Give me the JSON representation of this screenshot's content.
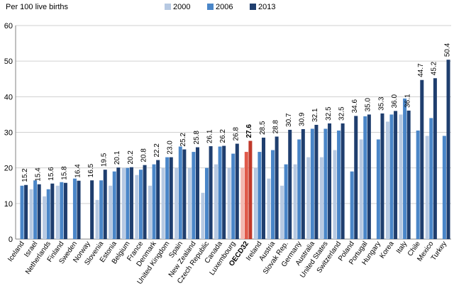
{
  "chart_data": {
    "type": "bar",
    "ylabel": "Per 100 live births",
    "ylim": [
      0,
      60
    ],
    "yticks": [
      0,
      10,
      20,
      30,
      40,
      50,
      60
    ],
    "grid": true,
    "legend_position": "top",
    "highlight_category": "OECD32",
    "highlight_color": "#C0392B",
    "categories": [
      "Iceland",
      "Israel",
      "Netherlands",
      "Finland",
      "Sweden",
      "Norway",
      "Slovenia",
      "Estonia",
      "Belgium",
      "France",
      "Denmark",
      "United Kingdom",
      "Spain",
      "New Zealand",
      "Czech Republic",
      "Canada",
      "Luxembourg",
      "OECD32",
      "Ireland",
      "Austria",
      "Slovak Rep.",
      "Germany",
      "Australia",
      "United States",
      "Switzerland",
      "Poland",
      "Portugal",
      "Hungary",
      "Korea",
      "Italy",
      "Chile",
      "Mexico",
      "Turkey"
    ],
    "series": [
      {
        "name": "2000",
        "color": "#B7C9E2",
        "values": [
          null,
          14,
          12,
          15,
          null,
          null,
          11,
          15,
          20,
          18,
          15,
          20,
          20,
          20,
          13,
          21,
          20,
          20,
          20,
          17,
          15,
          21,
          23,
          23,
          25,
          null,
          28,
          null,
          33,
          35,
          null,
          29,
          null
        ]
      },
      {
        "name": "2006",
        "color": "#4A86C8",
        "values": [
          15,
          16.5,
          14,
          16,
          17,
          null,
          16.5,
          19,
          20,
          19.5,
          21,
          23,
          26,
          24.5,
          20,
          26,
          24,
          24.5,
          24.5,
          25,
          21,
          28,
          31,
          31,
          30.5,
          19,
          34.5,
          28,
          35,
          39.5,
          30.5,
          34,
          29
        ]
      },
      {
        "name": "2013",
        "color": "#1F3E6E",
        "values": [
          15.2,
          15.4,
          15.6,
          15.8,
          16.4,
          16.5,
          19.5,
          20.1,
          20.2,
          20.8,
          22.2,
          23,
          25.2,
          25.8,
          26.1,
          26.2,
          26.8,
          27.6,
          28.5,
          28.8,
          30.7,
          30.9,
          32.1,
          32.5,
          32.5,
          34.6,
          35,
          35.3,
          36,
          36.1,
          44.7,
          45.2,
          50.4
        ]
      }
    ],
    "labels_2013": [
      "15.2",
      "15.4",
      "15.6",
      "15.8",
      "16.4",
      "16.5",
      "19.5",
      "20.1",
      "20.2",
      "20.8",
      "22.2",
      "23.0",
      "25.2",
      "25.8",
      "26.1",
      "26.2",
      "26.8",
      "27.6",
      "28.5",
      "28.8",
      "30.7",
      "30.9",
      "32.1",
      "32.5",
      "32.5",
      "34.6",
      "35.0",
      "35.3",
      "36.0",
      "36.1",
      "44.7",
      "45.2",
      "50.4"
    ]
  }
}
